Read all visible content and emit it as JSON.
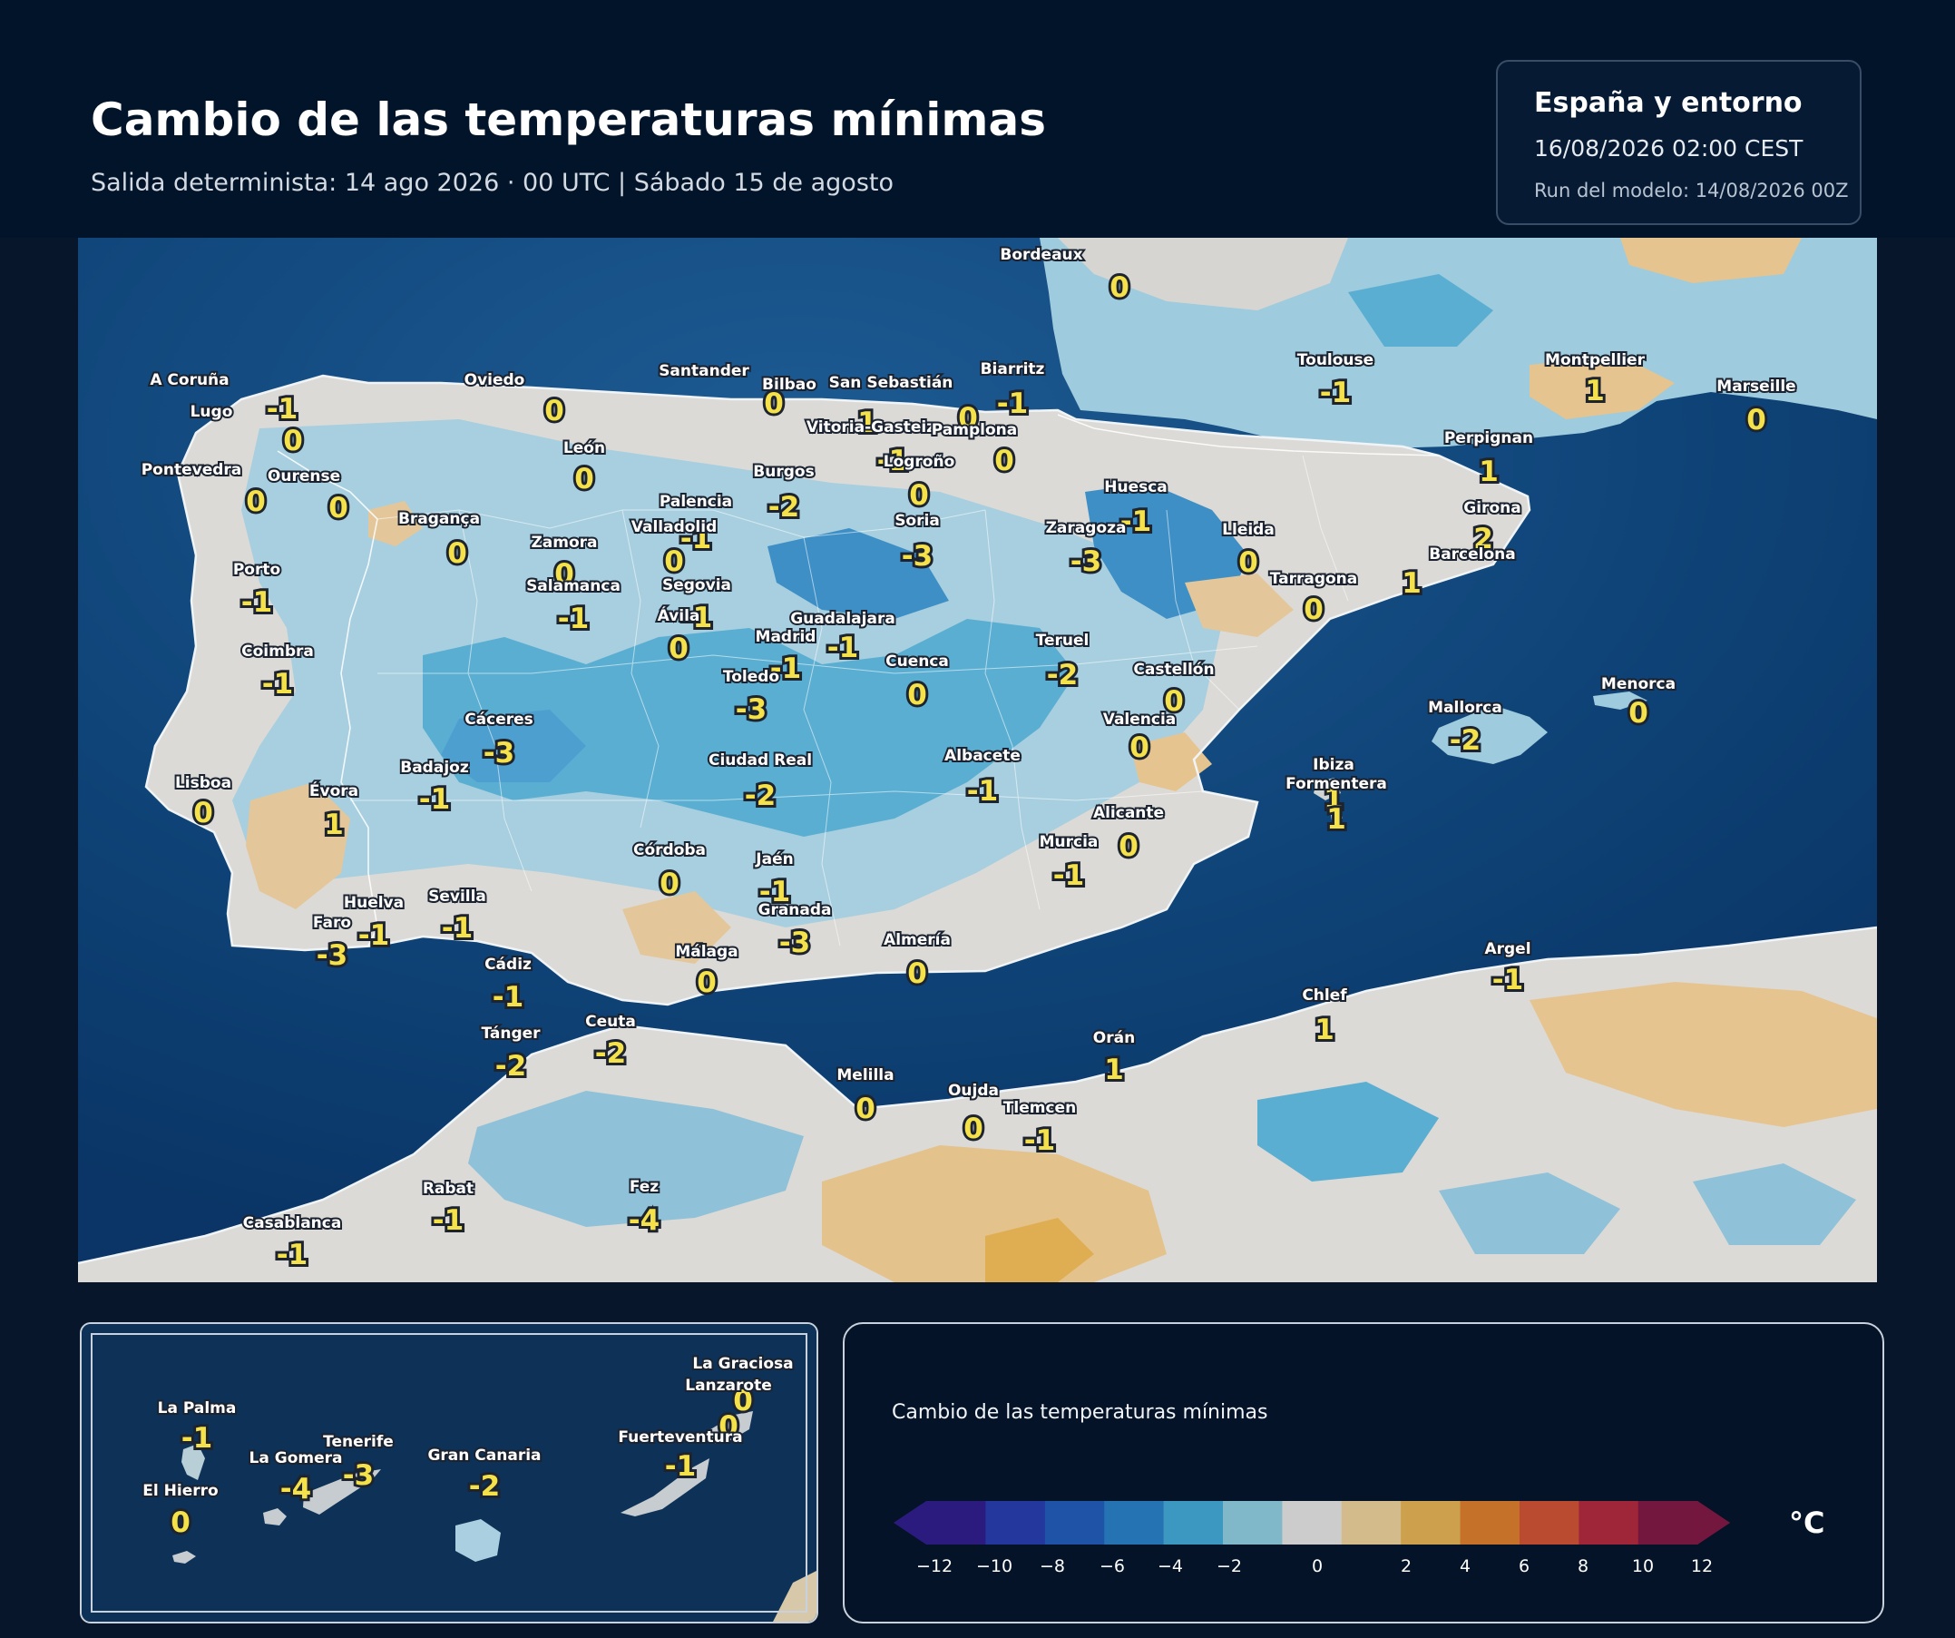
{
  "header": {
    "title": "Cambio de las temperaturas mínimas",
    "subtitle": "Salida determinista: 14 ago 2026 · 00 UTC  |  Sábado 15 de agosto"
  },
  "info": {
    "region": "España y entorno",
    "valid": "16/08/2026  02:00 CEST",
    "run": "Run del modelo: 14/08/2026 00Z"
  },
  "colors": {
    "sea": "#0e4478",
    "sea_dark": "#072e58",
    "neutral": "#d4d3d0",
    "cool_1": "#95c5d9",
    "cool_2": "#4aa3cc",
    "cool_3": "#2a78b8",
    "warm_1": "#e1c99b",
    "warm_2": "#e0ae52",
    "city_value": "#f5e24a"
  },
  "cities": [
    {
      "name": "Bordeaux",
      "value": "0"
    },
    {
      "name": "A Coruña",
      "value": "-1"
    },
    {
      "name": "Lugo",
      "value": "0"
    },
    {
      "name": "Oviedo",
      "value": "0"
    },
    {
      "name": "Santander",
      "value": "0"
    },
    {
      "name": "Bilbao",
      "value": "1"
    },
    {
      "name": "San Sebastián",
      "value": "0"
    },
    {
      "name": "Biarritz",
      "value": "-1"
    },
    {
      "name": "Vitoria-Gasteiz",
      "value": "-1"
    },
    {
      "name": "Pamplona",
      "value": "0"
    },
    {
      "name": "Toulouse",
      "value": "-1"
    },
    {
      "name": "Montpellier",
      "value": "1"
    },
    {
      "name": "Marseille",
      "value": "0"
    },
    {
      "name": "Pontevedra",
      "value": "0"
    },
    {
      "name": "Ourense",
      "value": "0"
    },
    {
      "name": "León",
      "value": "0"
    },
    {
      "name": "Burgos",
      "value": "-2"
    },
    {
      "name": "Logroño",
      "value": "0"
    },
    {
      "name": "Perpignan",
      "value": "1"
    },
    {
      "name": "Huesca",
      "value": "-1"
    },
    {
      "name": "Palencia",
      "value": "-1"
    },
    {
      "name": "Bragança",
      "value": "0"
    },
    {
      "name": "Valladolid",
      "value": "0"
    },
    {
      "name": "Soria",
      "value": "-3"
    },
    {
      "name": "Zaragoza",
      "value": "-3"
    },
    {
      "name": "Lleida",
      "value": "0"
    },
    {
      "name": "Girona",
      "value": "2"
    },
    {
      "name": "Zamora",
      "value": "0"
    },
    {
      "name": "Barcelona",
      "value": "1"
    },
    {
      "name": "Porto",
      "value": "-1"
    },
    {
      "name": "Salamanca",
      "value": "-1"
    },
    {
      "name": "Segovia",
      "value": "-1"
    },
    {
      "name": "Tarragona",
      "value": "0"
    },
    {
      "name": "Ávila",
      "value": "0"
    },
    {
      "name": "Guadalajara",
      "value": "-1"
    },
    {
      "name": "Madrid",
      "value": "-1"
    },
    {
      "name": "Teruel",
      "value": "-2"
    },
    {
      "name": "Coimbra",
      "value": "-1"
    },
    {
      "name": "Cuenca",
      "value": "0"
    },
    {
      "name": "Castellón",
      "value": "0"
    },
    {
      "name": "Toledo",
      "value": "-3"
    },
    {
      "name": "Menorca",
      "value": "0"
    },
    {
      "name": "Cáceres",
      "value": "-3"
    },
    {
      "name": "Valencia",
      "value": "0"
    },
    {
      "name": "Mallorca",
      "value": "-2"
    },
    {
      "name": "Badajoz",
      "value": "-1"
    },
    {
      "name": "Ciudad Real",
      "value": "-2"
    },
    {
      "name": "Albacete",
      "value": "-1"
    },
    {
      "name": "Ibiza",
      "value": "1"
    },
    {
      "name": "Formentera",
      "value": "1"
    },
    {
      "name": "Lisboa",
      "value": "0"
    },
    {
      "name": "Évora",
      "value": "1"
    },
    {
      "name": "Alicante",
      "value": "0"
    },
    {
      "name": "Murcia",
      "value": "-1"
    },
    {
      "name": "Córdoba",
      "value": "0"
    },
    {
      "name": "Jaén",
      "value": "-1"
    },
    {
      "name": "Sevilla",
      "value": "-1"
    },
    {
      "name": "Huelva",
      "value": "-1"
    },
    {
      "name": "Granada",
      "value": "-3"
    },
    {
      "name": "Faro",
      "value": "-3"
    },
    {
      "name": "Almería",
      "value": "0"
    },
    {
      "name": "Málaga",
      "value": "0"
    },
    {
      "name": "Cádiz",
      "value": "-1"
    },
    {
      "name": "Argel",
      "value": "-1"
    },
    {
      "name": "Chlef",
      "value": "1"
    },
    {
      "name": "Ceuta",
      "value": "-2"
    },
    {
      "name": "Tánger",
      "value": "-2"
    },
    {
      "name": "Orán",
      "value": "1"
    },
    {
      "name": "Melilla",
      "value": "0"
    },
    {
      "name": "Tlemcen",
      "value": "-1"
    },
    {
      "name": "Oujda",
      "value": "0"
    },
    {
      "name": "Rabat",
      "value": "-1"
    },
    {
      "name": "Fez",
      "value": "-4"
    },
    {
      "name": "Casablanca",
      "value": "-1"
    }
  ],
  "canarias": [
    {
      "name": "La Graciosa",
      "value": "0"
    },
    {
      "name": "Lanzarote",
      "value": "0"
    },
    {
      "name": "La Palma",
      "value": "-1"
    },
    {
      "name": "Tenerife",
      "value": "-3"
    },
    {
      "name": "Fuerteventura",
      "value": "-1"
    },
    {
      "name": "La Gomera",
      "value": "-4"
    },
    {
      "name": "Gran Canaria",
      "value": "-2"
    },
    {
      "name": "El Hierro",
      "value": "0"
    }
  ],
  "legend": {
    "title": "Cambio de las temperaturas mínimas",
    "unit": "°C",
    "colors": [
      "#2b1b7e",
      "#24379c",
      "#1f53a8",
      "#2673b4",
      "#3c98c0",
      "#80b7c9",
      "#cccccc",
      "#d4bb8b",
      "#cca04c",
      "#c5712a",
      "#ba4b30",
      "#9f2639",
      "#74173f"
    ],
    "ticks": [
      "−12",
      "−10",
      "−8",
      "−6",
      "−4",
      "−2",
      "0",
      "2",
      "4",
      "6",
      "8",
      "10",
      "12"
    ]
  }
}
